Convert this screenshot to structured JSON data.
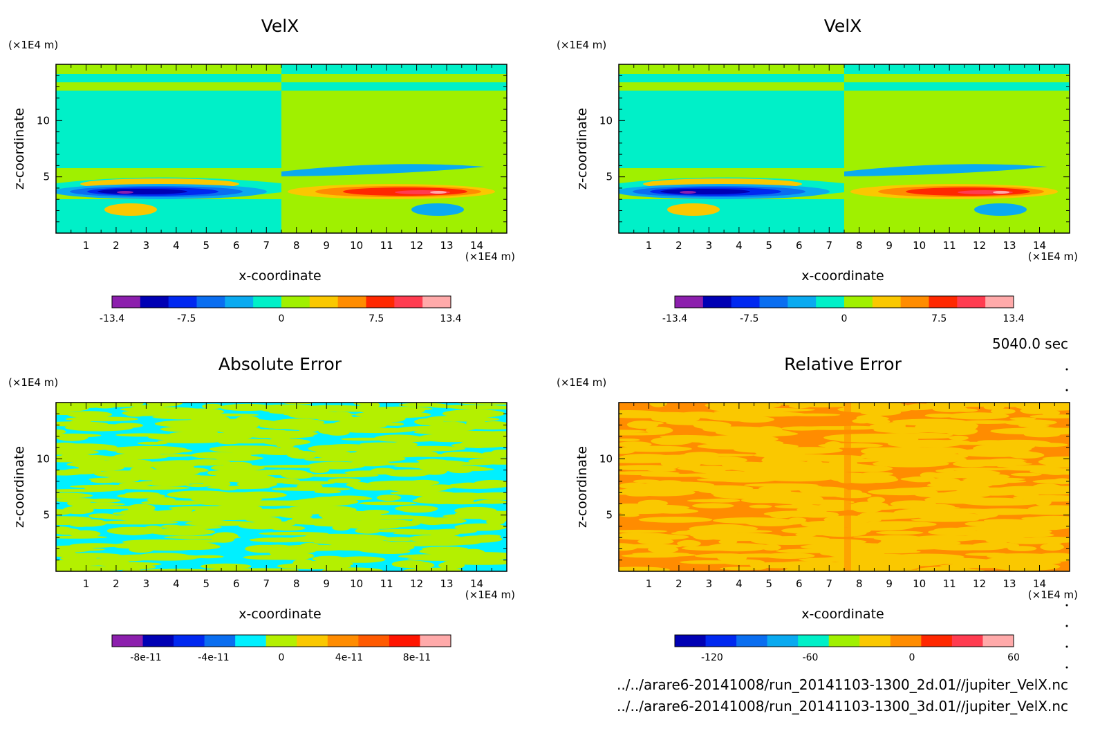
{
  "info": {
    "time": "5040.0 sec",
    "file1": "../../arare6-20141008/run_20141103-1300_2d.01//jupiter_VelX.nc",
    "file2": "../../arare6-20141008/run_20141103-1300_3d.01//jupiter_VelX.nc"
  },
  "chart_data": [
    {
      "type": "heatmap",
      "title": "VelX",
      "xlabel": "x-coordinate",
      "ylabel": "z-coordinate",
      "x_unit": "(×1E4 m)",
      "z_unit": "(×1E4 m)",
      "xlim": [
        0,
        15
      ],
      "zlim": [
        0,
        15
      ],
      "x_ticks": [
        1,
        2,
        3,
        4,
        5,
        6,
        7,
        8,
        9,
        10,
        11,
        12,
        13,
        14
      ],
      "z_ticks": [
        5,
        10
      ],
      "colorbar": {
        "colors": [
          "#8c1fad",
          "#0000b4",
          "#0028f0",
          "#0a6ef0",
          "#0aaaf0",
          "#00f0c8",
          "#a0f000",
          "#fac800",
          "#ff8c00",
          "#ff2800",
          "#ff3c50",
          "#ffaaaa"
        ],
        "tick_labels": [
          "-13.4",
          "-7.5",
          "0",
          "7.5",
          "13.4"
        ],
        "tick_positions": [
          0,
          0.22,
          0.5,
          0.78,
          1.0
        ]
      }
    },
    {
      "type": "heatmap",
      "title": "VelX",
      "xlabel": "x-coordinate",
      "ylabel": "z-coordinate",
      "x_unit": "(×1E4 m)",
      "z_unit": "(×1E4 m)",
      "xlim": [
        0,
        15
      ],
      "zlim": [
        0,
        15
      ],
      "x_ticks": [
        1,
        2,
        3,
        4,
        5,
        6,
        7,
        8,
        9,
        10,
        11,
        12,
        13,
        14
      ],
      "z_ticks": [
        5,
        10
      ],
      "colorbar": {
        "colors": [
          "#8c1fad",
          "#0000b4",
          "#0028f0",
          "#0a6ef0",
          "#0aaaf0",
          "#00f0c8",
          "#a0f000",
          "#fac800",
          "#ff8c00",
          "#ff2800",
          "#ff3c50",
          "#ffaaaa"
        ],
        "tick_labels": [
          "-13.4",
          "-7.5",
          "0",
          "7.5",
          "13.4"
        ],
        "tick_positions": [
          0,
          0.22,
          0.5,
          0.78,
          1.0
        ]
      }
    },
    {
      "type": "heatmap",
      "title": "Absolute Error",
      "xlabel": "x-coordinate",
      "ylabel": "z-coordinate",
      "x_unit": "(×1E4 m)",
      "z_unit": "(×1E4 m)",
      "xlim": [
        0,
        15
      ],
      "zlim": [
        0,
        15
      ],
      "x_ticks": [
        1,
        2,
        3,
        4,
        5,
        6,
        7,
        8,
        9,
        10,
        11,
        12,
        13,
        14
      ],
      "z_ticks": [
        5,
        10
      ],
      "colorbar": {
        "colors": [
          "#8c1fad",
          "#0000b4",
          "#0028f0",
          "#0a6ef0",
          "#00f0ff",
          "#b4f000",
          "#fac800",
          "#ff8c00",
          "#ff5a00",
          "#ff1400",
          "#ffaaaa"
        ],
        "tick_labels": [
          "-8e-11",
          "-4e-11",
          "0",
          "4e-11",
          "8e-11"
        ],
        "tick_positions": [
          0.1,
          0.3,
          0.5,
          0.7,
          0.9
        ]
      }
    },
    {
      "type": "heatmap",
      "title": "Relative Error",
      "xlabel": "x-coordinate",
      "ylabel": "z-coordinate",
      "x_unit": "(×1E4 m)",
      "z_unit": "(×1E4 m)",
      "xlim": [
        0,
        15
      ],
      "zlim": [
        0,
        15
      ],
      "x_ticks": [
        1,
        2,
        3,
        4,
        5,
        6,
        7,
        8,
        9,
        10,
        11,
        12,
        13,
        14
      ],
      "z_ticks": [
        5,
        10
      ],
      "colorbar": {
        "colors": [
          "#0000b4",
          "#0028f0",
          "#0a6ef0",
          "#0aaaf0",
          "#00f0c8",
          "#a0f000",
          "#fac800",
          "#ff8c00",
          "#ff2800",
          "#ff3c50",
          "#ffaaaa"
        ],
        "tick_labels": [
          "-120",
          "-60",
          "0",
          "60"
        ],
        "tick_positions": [
          0.11,
          0.4,
          0.7,
          1.0
        ]
      }
    }
  ]
}
